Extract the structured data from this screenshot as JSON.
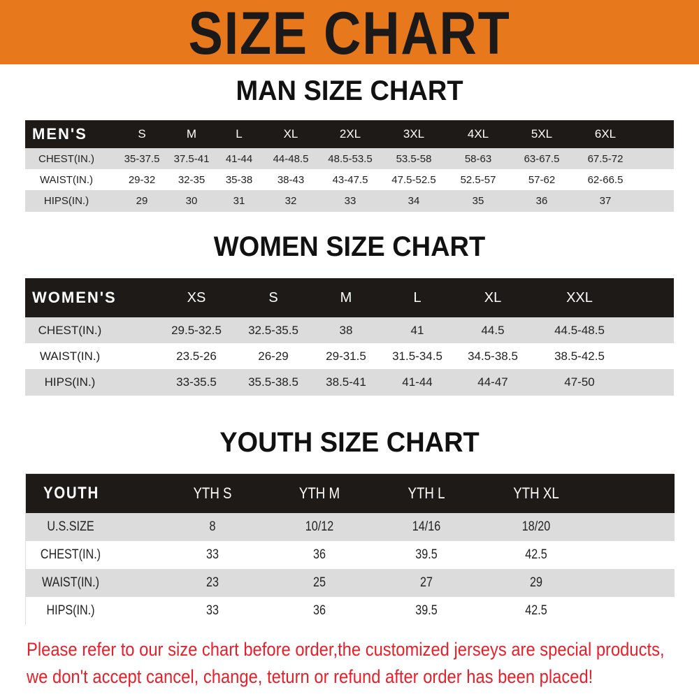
{
  "header": {
    "title": "SIZE CHART",
    "color": "#e8781c"
  },
  "men": {
    "title": "MAN SIZE CHART",
    "columns": [
      "MEN'S",
      "S",
      "M",
      "L",
      "XL",
      "2XL",
      "3XL",
      "4XL",
      "5XL",
      "6XL"
    ],
    "rows": [
      [
        "CHEST(IN.)",
        "35-37.5",
        "37.5-41",
        "41-44",
        "44-48.5",
        "48.5-53.5",
        "53.5-58",
        "58-63",
        "63-67.5",
        "67.5-72"
      ],
      [
        "WAIST(IN.)",
        "29-32",
        "32-35",
        "35-38",
        "38-43",
        "43-47.5",
        "47.5-52.5",
        "52.5-57",
        "57-62",
        "62-66.5"
      ],
      [
        "HIPS(IN.)",
        "29",
        "30",
        "31",
        "32",
        "33",
        "34",
        "35",
        "36",
        "37"
      ]
    ]
  },
  "women": {
    "title": "WOMEN SIZE CHART",
    "columns": [
      "WOMEN'S",
      "XS",
      "S",
      "M",
      "L",
      "XL",
      "XXL"
    ],
    "rows": [
      [
        "CHEST(IN.)",
        "29.5-32.5",
        "32.5-35.5",
        "38",
        "41",
        "44.5",
        "44.5-48.5"
      ],
      [
        "WAIST(IN.)",
        "23.5-26",
        "26-29",
        "29-31.5",
        "31.5-34.5",
        "34.5-38.5",
        "38.5-42.5"
      ],
      [
        "HIPS(IN.)",
        "33-35.5",
        "35.5-38.5",
        "38.5-41",
        "41-44",
        "44-47",
        "47-50"
      ]
    ]
  },
  "youth": {
    "title": "YOUTH SIZE CHART",
    "columns": [
      "YOUTH",
      "YTH S",
      "YTH M",
      "YTH L",
      "YTH XL"
    ],
    "rows": [
      [
        "U.S.SIZE",
        "8",
        "10/12",
        "14/16",
        "18/20"
      ],
      [
        "CHEST(IN.)",
        "33",
        "36",
        "39.5",
        "42.5"
      ],
      [
        "WAIST(IN.)",
        "23",
        "25",
        "27",
        "29"
      ],
      [
        "HIPS(IN.)",
        "33",
        "36",
        "39.5",
        "42.5"
      ]
    ]
  },
  "notice": {
    "line1": "Please refer to our size chart before order,the customized jerseys are special products,",
    "line2": "we don't accept cancel, change, teturn or refund after order has been placed!",
    "color": "#e6202a"
  }
}
